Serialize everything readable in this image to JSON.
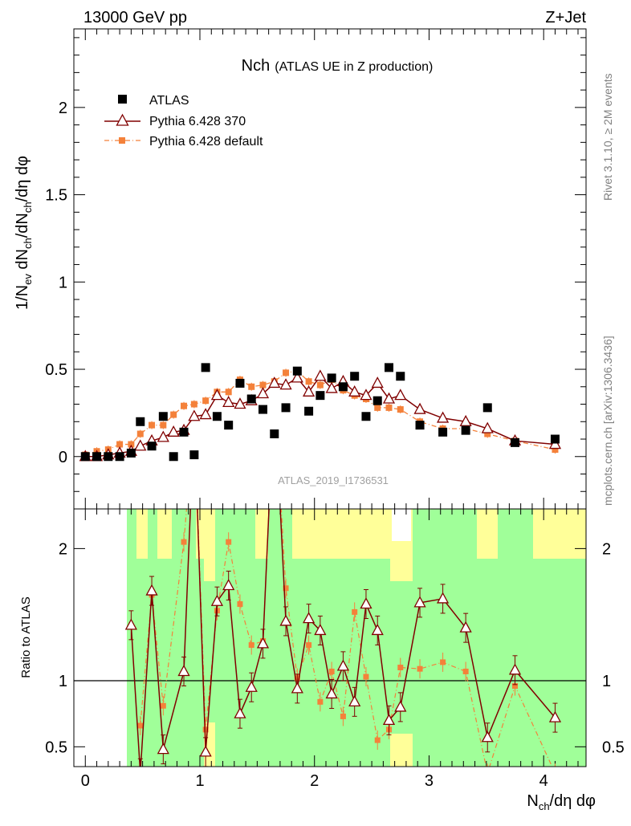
{
  "header": {
    "left": "13000 GeV pp",
    "right": "Z+Jet"
  },
  "side_text": {
    "rivet": "Rivet 3.1.10, ≥ 2M events",
    "mcplots": "mcplots.cern.ch [arXiv:1306.3436]"
  },
  "colors": {
    "data": "#000000",
    "py370": "#800000",
    "pydefault": "#f4813a",
    "band_inner": "#a0ff99",
    "band_outer": "#ffff99"
  },
  "chart_data": [
    {
      "panel": "main",
      "type": "scatter",
      "title": "Nch",
      "subtitle": "(ATLAS UE in Z production)",
      "ylabel": "1/N_ev dN_ch/dN_ch/dη dφ",
      "xlim": [
        -0.1,
        4.37
      ],
      "ylim": [
        -0.3,
        2.45
      ],
      "yticks": [
        0,
        0.5,
        1,
        1.5,
        2
      ],
      "ytick_labels": [
        "0",
        "0.5",
        "1",
        "1.5",
        "2"
      ],
      "watermark": "ATLAS_2019_I1736531",
      "legend": [
        "ATLAS",
        "Pythia 6.428 370",
        "Pythia 6.428 default"
      ],
      "series": [
        {
          "name": "ATLAS",
          "x": [
            0.0,
            0.1,
            0.2,
            0.3,
            0.4,
            0.48,
            0.58,
            0.68,
            0.77,
            0.86,
            0.95,
            1.05,
            1.15,
            1.25,
            1.35,
            1.45,
            1.55,
            1.65,
            1.75,
            1.85,
            1.95,
            2.05,
            2.15,
            2.25,
            2.35,
            2.45,
            2.55,
            2.65,
            2.75,
            2.92,
            3.12,
            3.32,
            3.51,
            3.75,
            4.1
          ],
          "values": [
            0.0,
            0.0,
            0.0,
            0.0,
            0.02,
            0.2,
            0.06,
            0.23,
            0.0,
            0.14,
            0.01,
            0.51,
            0.23,
            0.18,
            0.42,
            0.33,
            0.27,
            0.13,
            0.28,
            0.49,
            0.26,
            0.35,
            0.45,
            0.4,
            0.46,
            0.23,
            0.32,
            0.51,
            0.46,
            0.18,
            0.14,
            0.15,
            0.28,
            0.08,
            0.1
          ]
        },
        {
          "name": "Pythia 6.428 370",
          "x": [
            0.0,
            0.1,
            0.2,
            0.3,
            0.4,
            0.48,
            0.58,
            0.68,
            0.77,
            0.86,
            0.95,
            1.05,
            1.15,
            1.25,
            1.35,
            1.45,
            1.55,
            1.65,
            1.75,
            1.85,
            1.95,
            2.05,
            2.15,
            2.25,
            2.35,
            2.45,
            2.55,
            2.65,
            2.75,
            2.92,
            3.12,
            3.32,
            3.51,
            3.75,
            4.1
          ],
          "values": [
            0.0,
            0.0,
            0.01,
            0.02,
            0.03,
            0.06,
            0.09,
            0.11,
            0.14,
            0.15,
            0.23,
            0.24,
            0.35,
            0.31,
            0.3,
            0.32,
            0.36,
            0.42,
            0.41,
            0.45,
            0.37,
            0.46,
            0.39,
            0.43,
            0.37,
            0.35,
            0.42,
            0.33,
            0.35,
            0.27,
            0.22,
            0.2,
            0.16,
            0.09,
            0.07
          ]
        },
        {
          "name": "Pythia 6.428 default",
          "x": [
            0.0,
            0.1,
            0.2,
            0.3,
            0.4,
            0.48,
            0.58,
            0.68,
            0.77,
            0.86,
            0.95,
            1.05,
            1.15,
            1.25,
            1.35,
            1.45,
            1.55,
            1.65,
            1.75,
            1.85,
            1.95,
            2.05,
            2.15,
            2.25,
            2.35,
            2.45,
            2.55,
            2.65,
            2.75,
            2.92,
            3.12,
            3.32,
            3.51,
            3.75,
            4.1
          ],
          "values": [
            0.01,
            0.03,
            0.04,
            0.07,
            0.07,
            0.13,
            0.18,
            0.18,
            0.24,
            0.29,
            0.3,
            0.32,
            0.37,
            0.37,
            0.44,
            0.4,
            0.41,
            0.43,
            0.48,
            0.49,
            0.43,
            0.41,
            0.44,
            0.38,
            0.35,
            0.33,
            0.28,
            0.28,
            0.27,
            0.2,
            0.16,
            0.16,
            0.13,
            0.09,
            0.04
          ]
        }
      ]
    },
    {
      "panel": "ratio",
      "type": "line",
      "ylabel": "Ratio to ATLAS",
      "xlabel": "N_ch/dη dφ",
      "xlim": [
        -0.1,
        4.37
      ],
      "ylim": [
        0.35,
        2.3
      ],
      "yticks": [
        0.5,
        1,
        2
      ],
      "ytick_labels": [
        "0.5",
        "1",
        "2"
      ],
      "xticks": [
        0,
        1,
        2,
        3,
        4
      ],
      "xtick_labels": [
        "0",
        "1",
        "2",
        "3",
        "4"
      ],
      "series": [
        {
          "name": "Pythia 6.428 370",
          "x": [
            0.4,
            0.48,
            0.58,
            0.68,
            0.86,
            0.95,
            1.05,
            1.15,
            1.25,
            1.35,
            1.45,
            1.55,
            1.65,
            1.75,
            1.85,
            1.95,
            2.05,
            2.15,
            2.25,
            2.35,
            2.45,
            2.55,
            2.65,
            2.75,
            2.92,
            3.12,
            3.32,
            3.51,
            3.75,
            4.1
          ],
          "values": [
            1.42,
            0.3,
            1.68,
            0.48,
            1.07,
            3.0,
            0.46,
            1.6,
            1.72,
            0.75,
            0.95,
            1.28,
            3.2,
            1.45,
            0.94,
            1.47,
            1.38,
            0.9,
            1.11,
            0.84,
            1.58,
            1.38,
            0.7,
            0.8,
            1.59,
            1.62,
            1.4,
            0.57,
            1.08,
            0.72
          ]
        },
        {
          "name": "Pythia 6.428 default",
          "x": [
            0.48,
            0.58,
            0.68,
            0.86,
            0.95,
            1.05,
            1.15,
            1.25,
            1.35,
            1.45,
            1.55,
            1.65,
            1.75,
            1.85,
            1.95,
            2.05,
            2.15,
            2.25,
            2.35,
            2.45,
            2.55,
            2.65,
            2.75,
            2.92,
            3.12,
            3.32,
            3.51,
            3.75,
            4.1
          ],
          "values": [
            0.66,
            1.65,
            0.81,
            2.05,
            3.0,
            0.63,
            1.53,
            2.05,
            1.58,
            1.27,
            1.3,
            3.2,
            1.7,
            1.02,
            1.27,
            0.84,
            1.07,
            0.73,
            1.52,
            1.03,
            0.55,
            0.63,
            1.1,
            1.09,
            1.14,
            1.07,
            0.3,
            0.96,
            0.3
          ]
        }
      ]
    }
  ]
}
